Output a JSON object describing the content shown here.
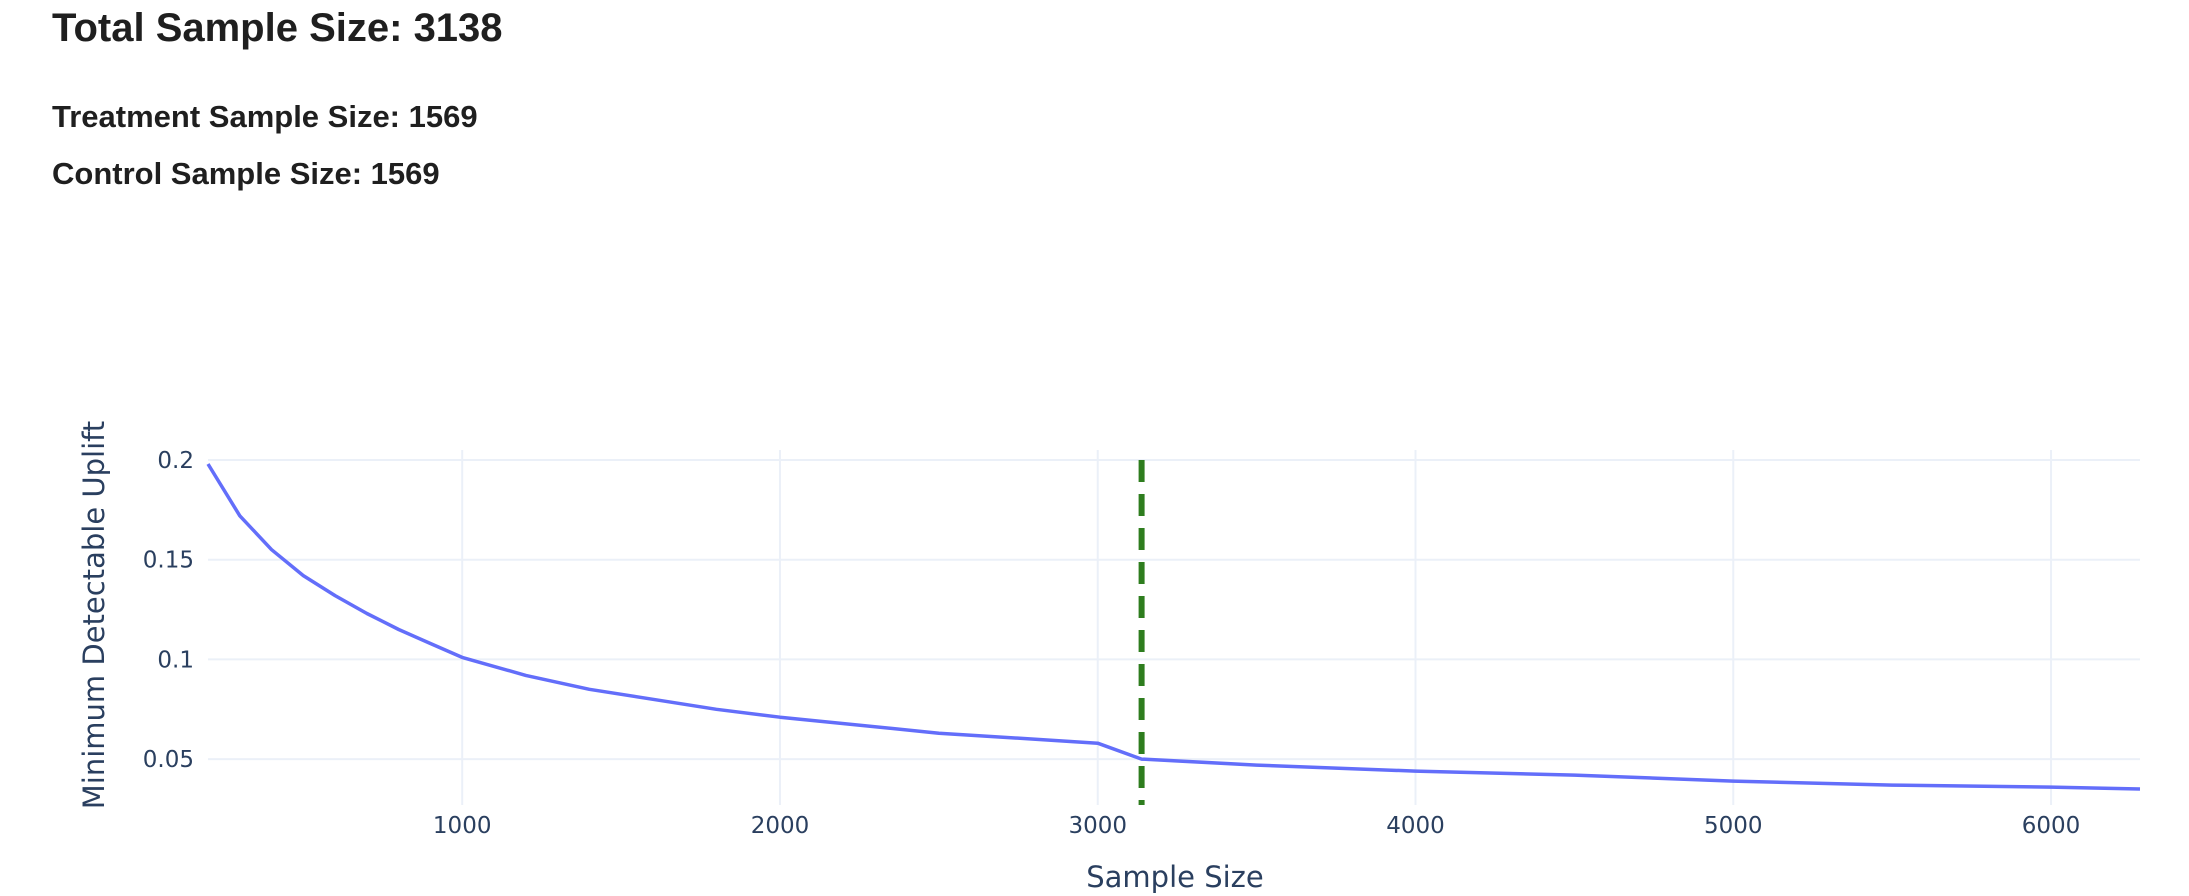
{
  "summary": {
    "total": "Total Sample Size: 3138",
    "treatment": "Treatment Sample Size: 1569",
    "control": "Control Sample Size: 1569"
  },
  "colors": {
    "line": "#636efa",
    "marker_line": "#2e7d1e",
    "grid": "#ebf0f8",
    "axis_text": "#2a3f5f"
  },
  "chart_data": {
    "type": "line",
    "xlabel": "Sample Size",
    "ylabel": "Minimum Detectable Uplift",
    "xlim": [
      200,
      6280
    ],
    "ylim": [
      0.027,
      0.205
    ],
    "xticks": [
      1000,
      2000,
      3000,
      4000,
      5000,
      6000
    ],
    "xtick_labels": [
      "1000",
      "2000",
      "3000",
      "4000",
      "5000",
      "6000"
    ],
    "yticks": [
      0.05,
      0.1,
      0.15,
      0.2
    ],
    "ytick_labels": [
      "0.05",
      "0.1",
      "0.15",
      "0.2"
    ],
    "grid": true,
    "legend": "none",
    "series": [
      {
        "style": "solid",
        "x": [
          200,
          300,
          400,
          500,
          600,
          700,
          800,
          900,
          1000,
          1200,
          1400,
          1600,
          1800,
          2000,
          2500,
          3000,
          3138,
          3500,
          4000,
          4500,
          5000,
          5500,
          6000,
          6280
        ],
        "y": [
          0.198,
          0.172,
          0.155,
          0.142,
          0.132,
          0.123,
          0.115,
          0.108,
          0.101,
          0.092,
          0.085,
          0.08,
          0.075,
          0.071,
          0.063,
          0.058,
          0.05,
          0.047,
          0.044,
          0.042,
          0.039,
          0.037,
          0.036,
          0.035
        ]
      },
      {
        "style": "dashed",
        "x": [
          3138,
          3138
        ],
        "y": [
          0.2,
          0.027
        ]
      }
    ]
  }
}
